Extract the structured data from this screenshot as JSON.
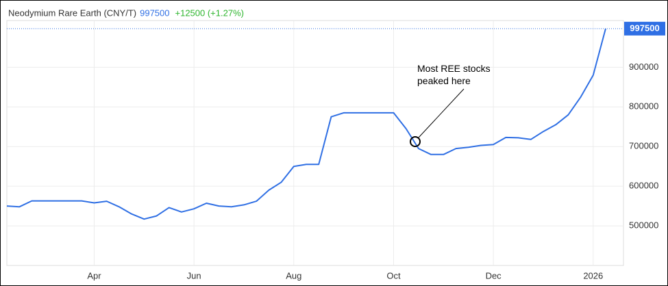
{
  "chart_data": {
    "type": "line",
    "title": "Neodymium Rare Earth (CNY/T)",
    "change": "+12500 (+1.27%)",
    "annotation": "Most REE stocks peaked here",
    "categories": [
      null,
      null,
      null,
      null,
      null,
      null,
      null,
      "Apr",
      null,
      null,
      null,
      null,
      null,
      null,
      null,
      "Jun",
      null,
      null,
      null,
      null,
      null,
      null,
      null,
      "Aug",
      null,
      null,
      null,
      null,
      null,
      null,
      null,
      "Oct",
      null,
      null,
      null,
      null,
      null,
      null,
      null,
      "Dec",
      null,
      null,
      null,
      null,
      null,
      null,
      null,
      "2026",
      null
    ],
    "series": [
      {
        "name": "Neodymium Rare Earth (CNY/T)",
        "color": "#2f6fe4",
        "values": [
          550000,
          548000,
          563000,
          563000,
          563000,
          563000,
          563000,
          558000,
          562000,
          548000,
          530000,
          517000,
          525000,
          546000,
          535000,
          543000,
          557000,
          550000,
          548000,
          553000,
          562000,
          590000,
          610000,
          650000,
          655000,
          655000,
          775000,
          785000,
          785000,
          785000,
          785000,
          785000,
          745000,
          695000,
          680000,
          680000,
          695000,
          698000,
          703000,
          705000,
          723000,
          722000,
          718000,
          738000,
          755000,
          780000,
          825000,
          880000,
          997500
        ]
      }
    ],
    "ylim": [
      400000,
      1030000
    ],
    "yticks": [
      500000,
      600000,
      700000,
      800000,
      900000
    ],
    "grid": true
  }
}
